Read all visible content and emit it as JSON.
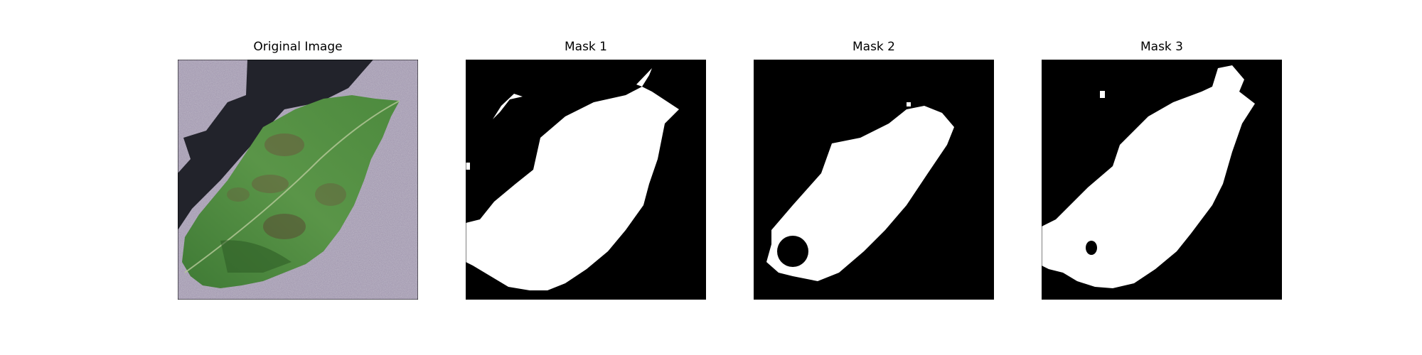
{
  "figure": {
    "panels": [
      {
        "title": "Original Image",
        "kind": "photo",
        "subject": "leaf-with-shadow"
      },
      {
        "title": "Mask 1",
        "kind": "mask"
      },
      {
        "title": "Mask 2",
        "kind": "mask"
      },
      {
        "title": "Mask 3",
        "kind": "mask"
      }
    ],
    "colors": {
      "background_surface": "#a79eb4",
      "shadow": "#22232b",
      "leaf_green": "#4f8b3c",
      "leaf_dark": "#3a6b2d",
      "lesion": "#6b5a3e",
      "mask_fg": "#ffffff",
      "mask_bg": "#000000"
    }
  }
}
